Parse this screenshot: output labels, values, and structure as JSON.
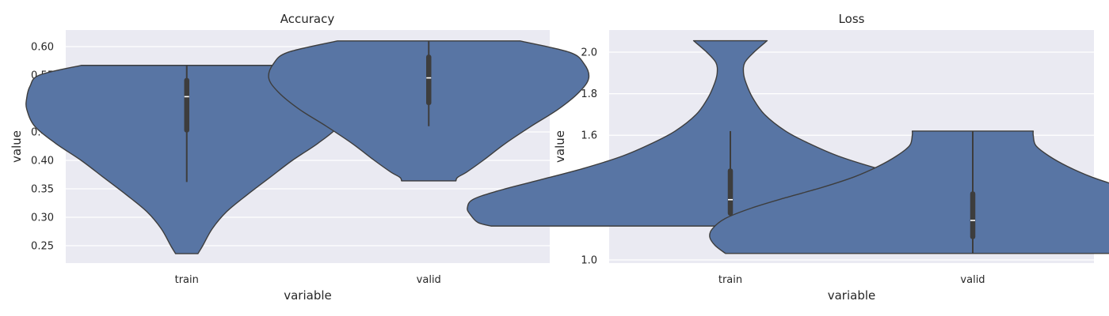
{
  "chart_data": [
    {
      "type": "violin",
      "title": "Accuracy",
      "xlabel": "variable",
      "ylabel": "value",
      "ylim": [
        0.22,
        0.628
      ],
      "yticks": [
        "0.25",
        "0.30",
        "0.35",
        "0.40",
        "0.45",
        "0.50",
        "0.55",
        "0.60"
      ],
      "categories": [
        "train",
        "valid"
      ],
      "cut": 0,
      "color": "#5875a4",
      "grid": true,
      "background": "#eaeaf2",
      "violins": [
        {
          "category": "train",
          "min": 0.236,
          "q1": 0.449,
          "median": 0.512,
          "q3": 0.545,
          "max": 0.567,
          "whisker_low": 0.362,
          "whisker_high": 0.567,
          "profile": [
            [
              0.236,
              0.07
            ],
            [
              0.25,
              0.1
            ],
            [
              0.28,
              0.16
            ],
            [
              0.31,
              0.25
            ],
            [
              0.34,
              0.38
            ],
            [
              0.37,
              0.52
            ],
            [
              0.4,
              0.66
            ],
            [
              0.43,
              0.82
            ],
            [
              0.46,
              0.95
            ],
            [
              0.49,
              1.0
            ],
            [
              0.51,
              1.0
            ],
            [
              0.53,
              0.98
            ],
            [
              0.55,
              0.92
            ],
            [
              0.567,
              0.66
            ]
          ]
        },
        {
          "category": "valid",
          "min": 0.364,
          "q1": 0.497,
          "median": 0.545,
          "q3": 0.586,
          "max": 0.61,
          "whisker_low": 0.46,
          "whisker_high": 0.61,
          "profile": [
            [
              0.364,
              0.17
            ],
            [
              0.37,
              0.18
            ],
            [
              0.38,
              0.24
            ],
            [
              0.4,
              0.34
            ],
            [
              0.43,
              0.48
            ],
            [
              0.46,
              0.64
            ],
            [
              0.49,
              0.81
            ],
            [
              0.52,
              0.94
            ],
            [
              0.545,
              1.0
            ],
            [
              0.57,
              0.97
            ],
            [
              0.59,
              0.88
            ],
            [
              0.61,
              0.57
            ]
          ]
        }
      ]
    },
    {
      "type": "violin",
      "title": "Loss",
      "xlabel": "variable",
      "ylabel": "value",
      "ylim": [
        0.99,
        2.1
      ],
      "yticks": [
        "1.0",
        "1.2",
        "1.4",
        "1.6",
        "1.8",
        "2.0"
      ],
      "categories": [
        "train",
        "valid"
      ],
      "cut": 0,
      "color": "#5875a4",
      "grid": true,
      "background": "#eaeaf2",
      "violins": [
        {
          "category": "train",
          "min": 1.163,
          "q1": 1.213,
          "median": 1.29,
          "q3": 1.44,
          "max": 2.055,
          "whisker_low": 1.163,
          "whisker_high": 1.62,
          "profile": [
            [
              1.163,
              0.91
            ],
            [
              1.18,
              0.96
            ],
            [
              1.22,
              0.99
            ],
            [
              1.25,
              1.0
            ],
            [
              1.29,
              0.98
            ],
            [
              1.33,
              0.89
            ],
            [
              1.38,
              0.74
            ],
            [
              1.44,
              0.56
            ],
            [
              1.5,
              0.41
            ],
            [
              1.56,
              0.3
            ],
            [
              1.62,
              0.21
            ],
            [
              1.7,
              0.13
            ],
            [
              1.78,
              0.085
            ],
            [
              1.85,
              0.06
            ],
            [
              1.9,
              0.05
            ],
            [
              1.95,
              0.055
            ],
            [
              2.0,
              0.09
            ],
            [
              2.055,
              0.14
            ]
          ]
        },
        {
          "category": "valid",
          "min": 1.031,
          "q1": 1.1,
          "median": 1.19,
          "q3": 1.33,
          "max": 1.62,
          "whisker_low": 1.031,
          "whisker_high": 1.62,
          "profile": [
            [
              1.031,
              0.94
            ],
            [
              1.07,
              0.98
            ],
            [
              1.11,
              1.0
            ],
            [
              1.15,
              0.99
            ],
            [
              1.2,
              0.94
            ],
            [
              1.25,
              0.84
            ],
            [
              1.3,
              0.71
            ],
            [
              1.35,
              0.57
            ],
            [
              1.4,
              0.45
            ],
            [
              1.45,
              0.36
            ],
            [
              1.5,
              0.29
            ],
            [
              1.55,
              0.24
            ],
            [
              1.6,
              0.23
            ],
            [
              1.62,
              0.23
            ]
          ]
        }
      ]
    }
  ]
}
